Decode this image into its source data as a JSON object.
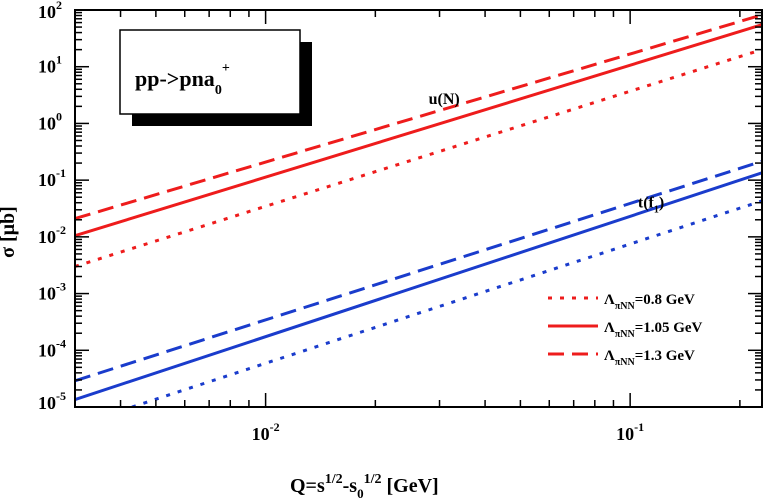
{
  "chart_data": {
    "type": "line",
    "scale": {
      "x": "log",
      "y": "log"
    },
    "xlim": [
      0.003,
      0.23
    ],
    "ylim": [
      1e-05,
      100
    ],
    "xlabel": {
      "q": "Q=s",
      "q_exp": "1/2",
      "minus": "-s",
      "s0_sub": "0",
      "s0_exp": "1/2",
      "unit": " [GeV]"
    },
    "ylabel": "σ [μb]",
    "x_ticks": [
      {
        "value": 0.01,
        "base": "10",
        "exp": "-2"
      },
      {
        "value": 0.1,
        "base": "10",
        "exp": "-1"
      }
    ],
    "y_ticks": [
      {
        "value": 1e-05,
        "base": "10",
        "exp": "-5"
      },
      {
        "value": 0.0001,
        "base": "10",
        "exp": "-4"
      },
      {
        "value": 0.001,
        "base": "10",
        "exp": "-3"
      },
      {
        "value": 0.01,
        "base": "10",
        "exp": "-2"
      },
      {
        "value": 0.1,
        "base": "10",
        "exp": "-1"
      },
      {
        "value": 1,
        "base": "10",
        "exp": "0"
      },
      {
        "value": 10,
        "base": "10",
        "exp": "1"
      },
      {
        "value": 100,
        "base": "10",
        "exp": "2"
      }
    ],
    "process": {
      "text": "pp->pna",
      "sub": "0",
      "sup": "+"
    },
    "annotations": [
      {
        "id": "u",
        "text": "u(N)",
        "x": 0.028,
        "y": 2.2
      },
      {
        "id": "t",
        "text": "t(f",
        "sub": "1",
        "close": ")",
        "x": 0.105,
        "y": 0.033
      }
    ],
    "series": [
      {
        "name": "u(N) Λ=0.8 GeV",
        "group": "u(N)",
        "lambda": 0.8,
        "color": "#ee1c1c",
        "style": "dotted",
        "x": [
          0.003,
          0.23
        ],
        "y": [
          0.003,
          20
        ]
      },
      {
        "name": "u(N) Λ=1.05 GeV",
        "group": "u(N)",
        "lambda": 1.05,
        "color": "#ee1c1c",
        "style": "solid",
        "x": [
          0.003,
          0.23
        ],
        "y": [
          0.0105,
          55
        ]
      },
      {
        "name": "u(N) Λ=1.3 GeV",
        "group": "u(N)",
        "lambda": 1.3,
        "color": "#ee1c1c",
        "style": "dashed",
        "x": [
          0.003,
          0.23
        ],
        "y": [
          0.021,
          82
        ]
      },
      {
        "name": "t(f1) Λ=0.8 GeV",
        "group": "t(f1)",
        "lambda": 0.8,
        "color": "#1a3ccc",
        "style": "dotted",
        "x": [
          0.0043,
          0.23
        ],
        "y": [
          1e-05,
          0.043
        ]
      },
      {
        "name": "t(f1) Λ=1.05 GeV",
        "group": "t(f1)",
        "lambda": 1.05,
        "color": "#1a3ccc",
        "style": "solid",
        "x": [
          0.003,
          0.23
        ],
        "y": [
          1.35e-05,
          0.135
        ]
      },
      {
        "name": "t(f1) Λ=1.3 GeV",
        "group": "t(f1)",
        "lambda": 1.3,
        "color": "#1a3ccc",
        "style": "dashed",
        "x": [
          0.003,
          0.23
        ],
        "y": [
          2.9e-05,
          0.215
        ]
      }
    ],
    "legend": {
      "position": "bottom-right",
      "entries": [
        {
          "symbol": "Λ",
          "sub": "πNN",
          "value": "=0.8 GeV",
          "style": "dotted",
          "color": "#ee1c1c"
        },
        {
          "symbol": "Λ",
          "sub": "πNN",
          "value": "=1.05 GeV",
          "style": "solid",
          "color": "#ee1c1c"
        },
        {
          "symbol": "Λ",
          "sub": "πNN",
          "value": "=1.3 GeV",
          "style": "dashed",
          "color": "#ee1c1c"
        }
      ]
    }
  }
}
